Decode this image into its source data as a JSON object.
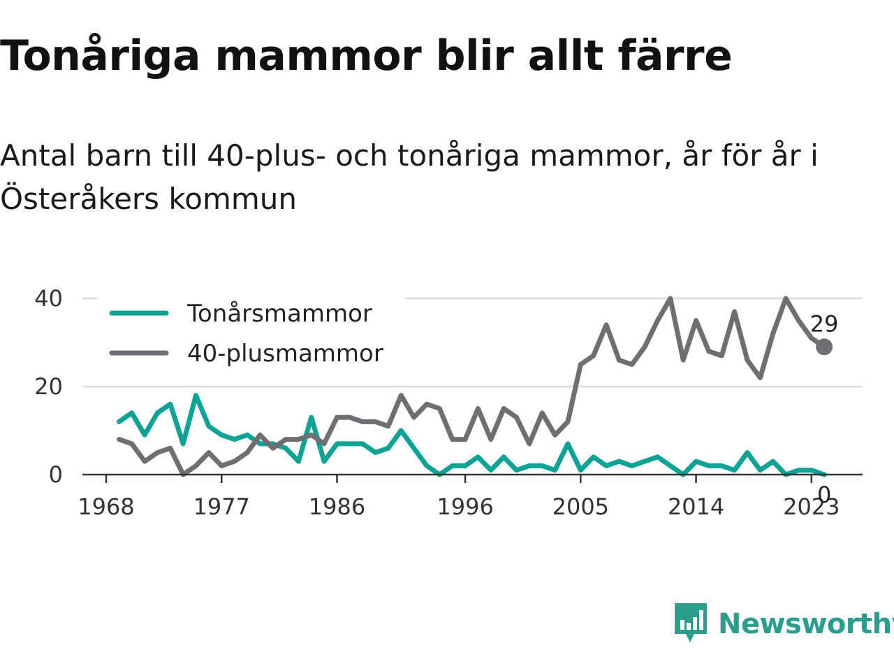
{
  "title": "Tonåriga mammor blir allt färre",
  "subtitle": "Antal barn till 40-plus- och tonåriga mammor, år för år i Österåkers kommun",
  "brand": {
    "name": "Newsworthy",
    "color": "#2a9d8f",
    "icon": "newsworthy-logo-icon"
  },
  "chart_data": {
    "type": "line",
    "x": [
      1969,
      1970,
      1971,
      1972,
      1973,
      1974,
      1975,
      1976,
      1977,
      1978,
      1979,
      1980,
      1981,
      1982,
      1983,
      1984,
      1985,
      1986,
      1987,
      1988,
      1989,
      1990,
      1991,
      1992,
      1993,
      1994,
      1995,
      1996,
      1997,
      1998,
      1999,
      2000,
      2001,
      2002,
      2003,
      2004,
      2005,
      2006,
      2007,
      2008,
      2009,
      2010,
      2011,
      2012,
      2013,
      2014,
      2015,
      2016,
      2017,
      2018,
      2019,
      2020,
      2021,
      2022,
      2023,
      2024
    ],
    "series": [
      {
        "name": "Tonårsmammor",
        "color": "#0fa396",
        "values": [
          12,
          14,
          9,
          14,
          16,
          7,
          18,
          11,
          9,
          8,
          9,
          7,
          7,
          6,
          3,
          13,
          3,
          7,
          7,
          7,
          5,
          6,
          10,
          6,
          2,
          0,
          2,
          2,
          4,
          1,
          4,
          1,
          2,
          2,
          1,
          7,
          1,
          4,
          2,
          3,
          2,
          3,
          4,
          2,
          0,
          3,
          2,
          2,
          1,
          5,
          1,
          3,
          0,
          1,
          1,
          0
        ]
      },
      {
        "name": "40-plusmammor",
        "color": "#6e6e73",
        "values": [
          8,
          7,
          3,
          5,
          6,
          0,
          2,
          5,
          2,
          3,
          5,
          9,
          6,
          8,
          8,
          9,
          7,
          13,
          13,
          12,
          12,
          11,
          18,
          13,
          16,
          15,
          8,
          8,
          15,
          8,
          15,
          13,
          7,
          14,
          9,
          12,
          25,
          27,
          34,
          26,
          25,
          29,
          35,
          40,
          26,
          35,
          28,
          27,
          37,
          26,
          22,
          32,
          40,
          35,
          31,
          29
        ]
      }
    ],
    "x_ticks": [
      "1968",
      "1977",
      "1986",
      "1996",
      "2005",
      "2014",
      "2023"
    ],
    "y_ticks": [
      "0",
      "20",
      "40"
    ],
    "ylim": [
      0,
      40
    ],
    "grid": true,
    "legend": "top-left",
    "end_labels": {
      "40-plusmammor": "29",
      "Tonårsmammor": "0"
    }
  }
}
